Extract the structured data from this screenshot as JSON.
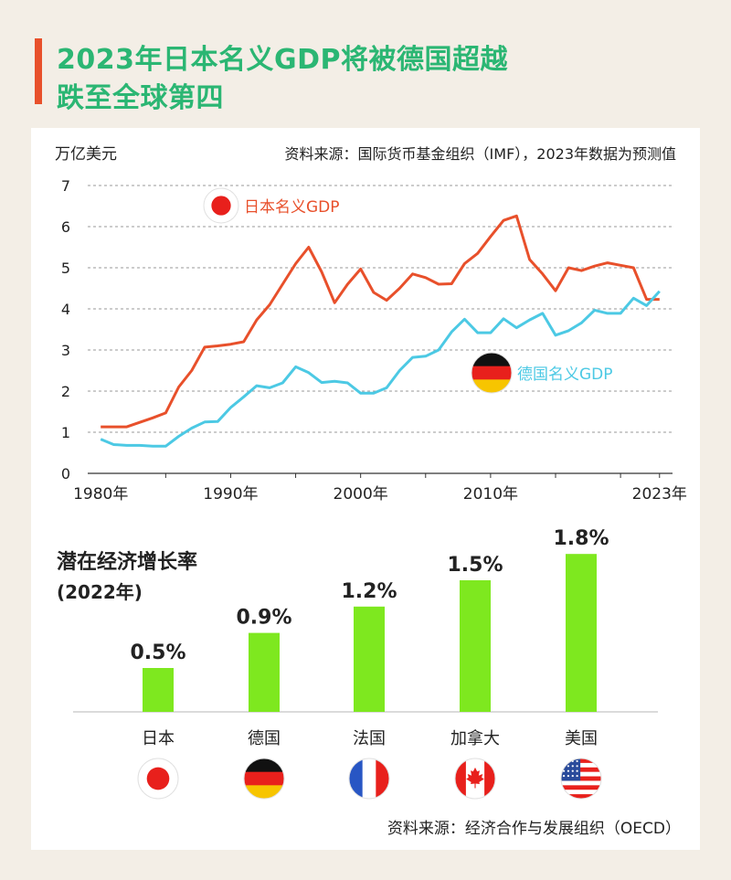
{
  "header": {
    "title_line1": "2023年日本名义GDP将被德国超越",
    "title_line2": "跌至全球第四"
  },
  "colors": {
    "japan": "#e8502b",
    "germany": "#4cc9e4",
    "bar": "#7ee81f",
    "title": "#2bb673",
    "accent": "#e8502b"
  },
  "chart_data": [
    {
      "type": "line",
      "unit_label": "万亿美元",
      "source": "资料来源：国际货币基金组织（IMF），2023年数据为预测值",
      "ylim": [
        0,
        7
      ],
      "yticks": [
        "0",
        "1",
        "2",
        "3",
        "4",
        "5",
        "6",
        "7"
      ],
      "xlim": [
        1979,
        2024
      ],
      "xticks": [
        {
          "x": 1980,
          "label": "1980年"
        },
        {
          "x": 1990,
          "label": "1990年"
        },
        {
          "x": 2000,
          "label": "2000年"
        },
        {
          "x": 2010,
          "label": "2010年"
        },
        {
          "x": 2023,
          "label": "2023年"
        }
      ],
      "grid": true,
      "series": [
        {
          "name": "日本名义GDP",
          "icon": "japan-flag-icon",
          "x": [
            1980,
            1981,
            1982,
            1983,
            1984,
            1985,
            1986,
            1987,
            1988,
            1989,
            1990,
            1991,
            1992,
            1993,
            1994,
            1995,
            1996,
            1997,
            1998,
            1999,
            2000,
            2001,
            2002,
            2003,
            2004,
            2005,
            2006,
            2007,
            2008,
            2009,
            2010,
            2011,
            2012,
            2013,
            2014,
            2015,
            2016,
            2017,
            2018,
            2019,
            2020,
            2021,
            2022,
            2023
          ],
          "values": [
            1.13,
            1.13,
            1.13,
            1.24,
            1.35,
            1.47,
            2.1,
            2.5,
            3.07,
            3.1,
            3.14,
            3.2,
            3.73,
            4.1,
            4.6,
            5.1,
            5.5,
            4.9,
            4.15,
            4.6,
            4.97,
            4.4,
            4.21,
            4.5,
            4.85,
            4.76,
            4.6,
            4.61,
            5.1,
            5.35,
            5.76,
            6.15,
            6.26,
            5.2,
            4.85,
            4.44,
            5.0,
            4.93,
            5.04,
            5.12,
            5.06,
            5.0,
            4.23,
            4.23
          ]
        },
        {
          "name": "德国名义GDP",
          "icon": "germany-flag-icon",
          "x": [
            1980,
            1981,
            1982,
            1983,
            1984,
            1985,
            1986,
            1987,
            1988,
            1989,
            1990,
            1991,
            1992,
            1993,
            1994,
            1995,
            1996,
            1997,
            1998,
            1999,
            2000,
            2001,
            2002,
            2003,
            2004,
            2005,
            2006,
            2007,
            2008,
            2009,
            2010,
            2011,
            2012,
            2013,
            2014,
            2015,
            2016,
            2017,
            2018,
            2019,
            2020,
            2021,
            2022,
            2023
          ],
          "values": [
            0.83,
            0.7,
            0.68,
            0.68,
            0.66,
            0.66,
            0.9,
            1.1,
            1.25,
            1.26,
            1.6,
            1.86,
            2.13,
            2.08,
            2.2,
            2.59,
            2.45,
            2.21,
            2.24,
            2.2,
            1.95,
            1.95,
            2.08,
            2.5,
            2.82,
            2.85,
            3.0,
            3.44,
            3.75,
            3.42,
            3.42,
            3.76,
            3.54,
            3.73,
            3.89,
            3.36,
            3.47,
            3.66,
            3.97,
            3.89,
            3.89,
            4.26,
            4.08,
            4.43
          ]
        }
      ]
    },
    {
      "type": "bar",
      "title": "潜在经济增长率",
      "subtitle": "(2022年)",
      "ylim": [
        0,
        2.0
      ],
      "categories": [
        "日本",
        "德国",
        "法国",
        "加拿大",
        "美国"
      ],
      "values": [
        0.5,
        0.9,
        1.2,
        1.5,
        1.8
      ],
      "value_labels": [
        "0.5%",
        "0.9%",
        "1.2%",
        "1.5%",
        "1.8%"
      ],
      "flags": [
        "japan-flag-icon",
        "germany-flag-icon",
        "france-flag-icon",
        "canada-flag-icon",
        "usa-flag-icon"
      ],
      "source": "资料来源：经济合作与发展组织（OECD）"
    }
  ]
}
